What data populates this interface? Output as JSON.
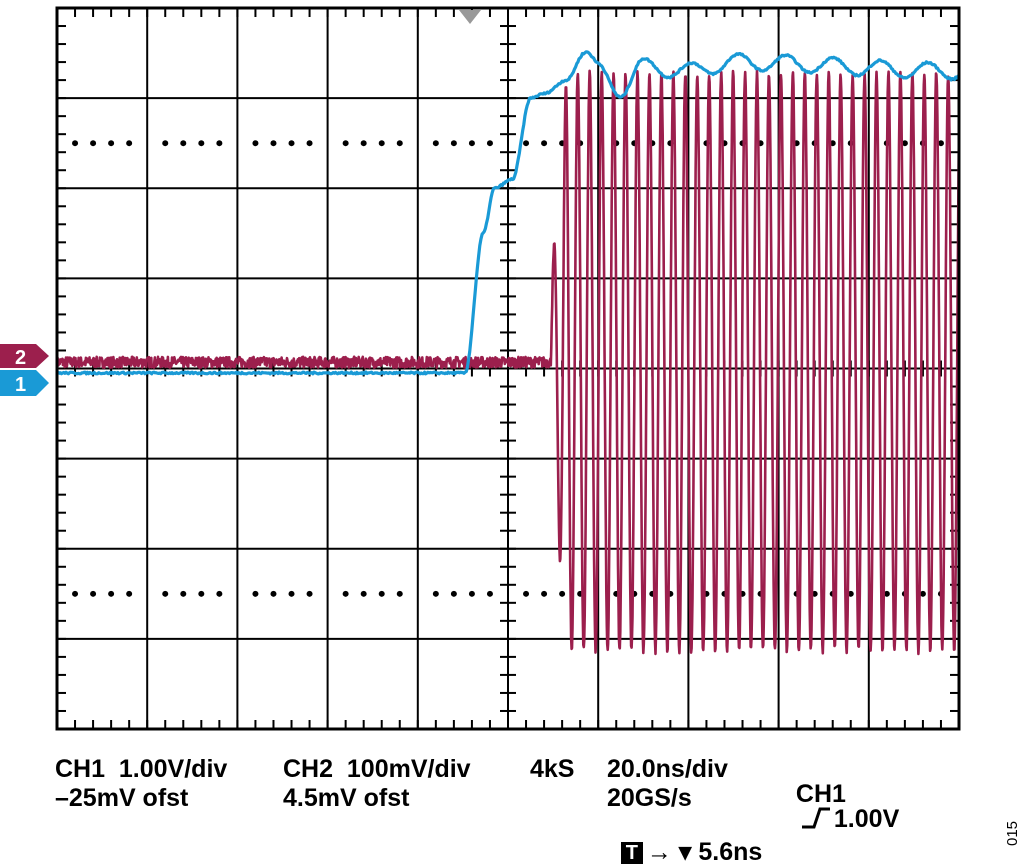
{
  "chart_data": {
    "type": "line",
    "title": "",
    "divisions": {
      "x": 10,
      "y": 8
    },
    "colors": {
      "ch1": "#1a9ad6",
      "ch2": "#9c1f4d",
      "grid": "#000000",
      "trigger_marker": "#999999"
    },
    "x_unit": "ns",
    "x_range": [
      0,
      200
    ],
    "trigger_position_ns": 93.2,
    "series": [
      {
        "name": "CH1",
        "channel_marker": "1",
        "scale": "1.00V/div",
        "offset": "–25mV ofst",
        "baseline_div": -0.05,
        "description_points": [
          {
            "t": 0,
            "div": -0.05
          },
          {
            "t": 90.5,
            "div": -0.05
          },
          {
            "t": 94.5,
            "div": 1.5
          },
          {
            "t": 97,
            "div": 2.0
          },
          {
            "t": 101,
            "div": 2.1
          },
          {
            "t": 105,
            "div": 3.0
          },
          {
            "t": 108,
            "div": 3.05
          },
          {
            "t": 113,
            "div": 3.2
          },
          {
            "t": 117,
            "div": 3.5
          },
          {
            "t": 120,
            "div": 3.3
          },
          {
            "t": 125,
            "div": 3.1
          },
          {
            "t": 130,
            "div": 3.35
          },
          {
            "t": 140,
            "div": 3.3
          },
          {
            "t": 150,
            "div": 3.4
          },
          {
            "t": 200,
            "div": 3.3
          }
        ]
      },
      {
        "name": "CH2",
        "channel_marker": "2",
        "scale": "100mV/div",
        "offset": "4.5mV ofst",
        "baseline_div": 0.07,
        "burst_start_ns": 109.5,
        "burst_full_ns": 113,
        "burst_amplitude_div": 3.2,
        "burst_period_ns": 2.65
      }
    ],
    "acquisition": {
      "record_length": "4kS",
      "timebase": "20.0ns/div",
      "sample_rate": "20GS/s",
      "trigger": "CH1 ⎍ 1.00V",
      "trigger_delay": "5.6ns"
    }
  },
  "labels": {
    "ch1_scale": "CH1  1.00V/div",
    "ch1_offset": "–25mV ofst",
    "ch2_scale": "CH2  100mV/div",
    "ch2_offset": "4.5mV ofst",
    "record_length": "4kS",
    "timebase": "20.0ns/div",
    "sample_rate": "20GS/s",
    "trigger_source": "CH1",
    "trigger_level": "1.00V",
    "trigger_box": "T",
    "trigger_arrow": "→ ▾ 5.6ns",
    "marker_ch1": "1",
    "marker_ch2": "2",
    "figure_number": "015"
  }
}
